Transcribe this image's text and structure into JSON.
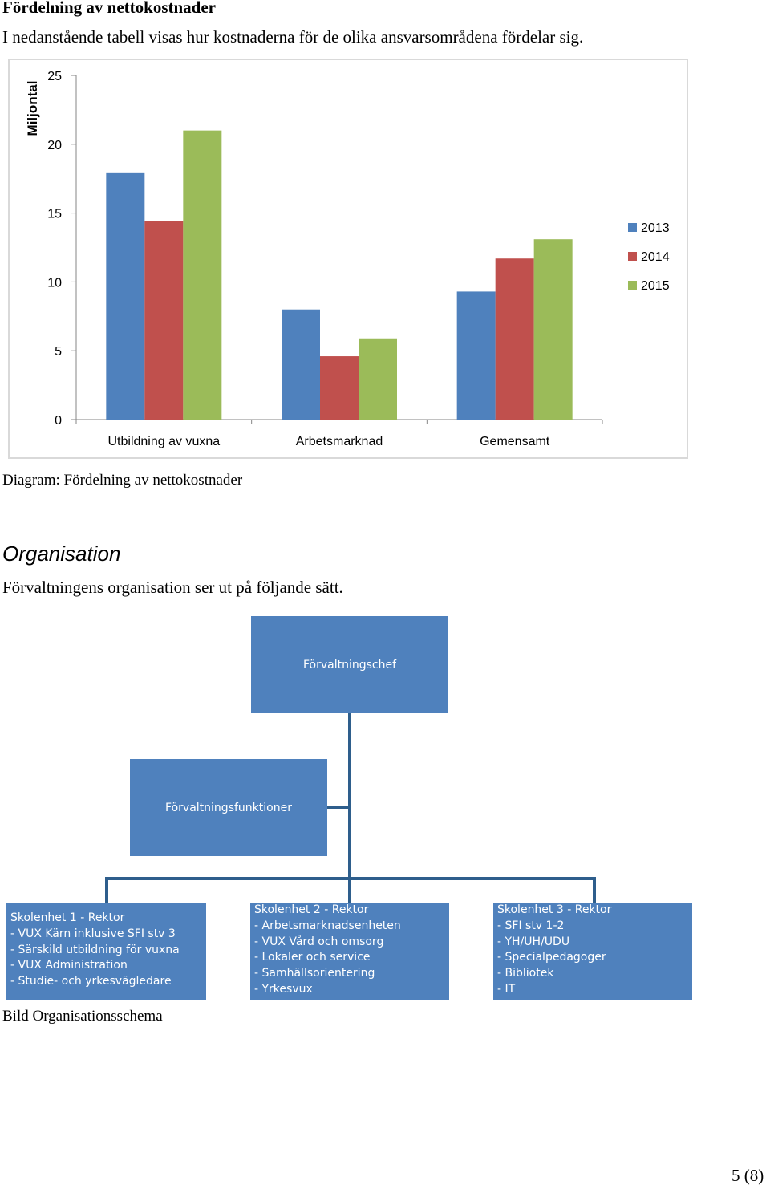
{
  "heading": "Fördelning av nettokostnader",
  "intro": "I nedanstående tabell visas hur kostnaderna för de olika ansvarsområdena fördelar sig.",
  "chart_data": {
    "type": "bar",
    "title": "",
    "xlabel": "",
    "ylabel": "Miljontal",
    "ylim": [
      0,
      25
    ],
    "yticks": [
      "0",
      "5",
      "10",
      "15",
      "20",
      "25"
    ],
    "categories": [
      "Utbildning av vuxna",
      "Arbetsmarknad",
      "Gemensamt"
    ],
    "series": [
      {
        "name": "2013",
        "color": "#4f81bd",
        "values": [
          17.9,
          8.0,
          9.3
        ]
      },
      {
        "name": "2014",
        "color": "#c0504d",
        "values": [
          14.4,
          4.6,
          11.7
        ]
      },
      {
        "name": "2015",
        "color": "#9bbb59",
        "values": [
          21.0,
          5.9,
          13.1
        ]
      }
    ],
    "grid": false,
    "legend": "right"
  },
  "chart_caption": "Diagram: Fördelning av nettokostnader",
  "org_title": "Organisation",
  "org_intro": "Förvaltningens organisation ser ut på följande sätt.",
  "org": {
    "chief": "Förvaltningschef",
    "functions": "Förvaltningsfunktioner",
    "units": [
      {
        "lines": [
          "Skolenhet 1 - Rektor",
          "- VUX Kärn inklusive SFI stv 3",
          "- Särskild utbildning för vuxna",
          "- VUX Administration",
          "- Studie- och yrkesvägledare"
        ]
      },
      {
        "lines": [
          "Skolenhet 2 - Rektor",
          "- Arbetsmarknadsenheten",
          "- VUX Vård och omsorg",
          "- Lokaler och service",
          "- Samhällsorientering",
          "- Yrkesvux"
        ]
      },
      {
        "lines": [
          "Skolenhet 3 - Rektor",
          "- SFI stv 1-2",
          "- YH/UH/UDU",
          "- Specialpedagoger",
          "- Bibliotek",
          "- IT"
        ]
      }
    ],
    "box_color": "#4f81bd",
    "line_color": "#2e5e8c"
  },
  "org_caption": "Bild Organisationsschema",
  "page_number": "5 (8)"
}
